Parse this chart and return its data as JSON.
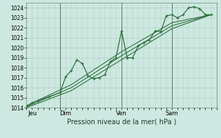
{
  "xlabel": "Pression niveau de la mer( hPa )",
  "background_color": "#cde8e0",
  "grid_color": "#a8c8bc",
  "line_color": "#2d6e3e",
  "vline_color": "#557766",
  "ylim": [
    1014,
    1024.5
  ],
  "yticks": [
    1014,
    1015,
    1016,
    1017,
    1018,
    1019,
    1020,
    1021,
    1022,
    1023,
    1024
  ],
  "day_labels": [
    "Jeu",
    "Dim",
    "Ven",
    "Sam"
  ],
  "day_positions": [
    0.5,
    3.5,
    8.5,
    13.0
  ],
  "vline_positions": [
    3.0,
    8.5,
    13.0
  ],
  "xlim": [
    0,
    17.0
  ],
  "series_main": {
    "x": [
      0.0,
      0.5,
      1.0,
      2.0,
      3.0,
      3.5,
      4.0,
      4.5,
      5.0,
      5.5,
      6.0,
      6.5,
      7.0,
      7.5,
      8.0,
      8.5,
      9.0,
      9.5,
      10.0,
      10.5,
      11.0,
      11.5,
      12.0,
      12.5,
      13.0,
      13.5,
      14.0,
      14.5,
      15.0,
      15.5,
      16.0,
      16.5
    ],
    "y": [
      1014.1,
      1014.5,
      1014.7,
      1015.1,
      1015.5,
      1017.1,
      1017.7,
      1018.8,
      1018.4,
      1017.2,
      1016.9,
      1017.0,
      1017.3,
      1018.6,
      1019.0,
      1021.7,
      1019.0,
      1019.0,
      1020.2,
      1020.5,
      1020.8,
      1021.7,
      1021.6,
      1023.2,
      1023.3,
      1023.0,
      1023.3,
      1024.0,
      1024.1,
      1023.9,
      1023.3,
      1023.3
    ],
    "marker": "+",
    "markersize": 3.5,
    "linewidth": 0.9
  },
  "series_smooth": [
    {
      "x": [
        0.0,
        4.0,
        8.5,
        13.0,
        16.5
      ],
      "y": [
        1014.1,
        1016.0,
        1019.2,
        1022.2,
        1023.3
      ],
      "linewidth": 0.8
    },
    {
      "x": [
        0.0,
        4.0,
        8.5,
        13.0,
        16.5
      ],
      "y": [
        1014.2,
        1016.3,
        1019.6,
        1022.5,
        1023.3
      ],
      "linewidth": 0.8
    },
    {
      "x": [
        0.0,
        4.0,
        8.5,
        13.0,
        16.5
      ],
      "y": [
        1014.0,
        1015.7,
        1018.8,
        1021.9,
        1023.3
      ],
      "linewidth": 0.8
    }
  ]
}
